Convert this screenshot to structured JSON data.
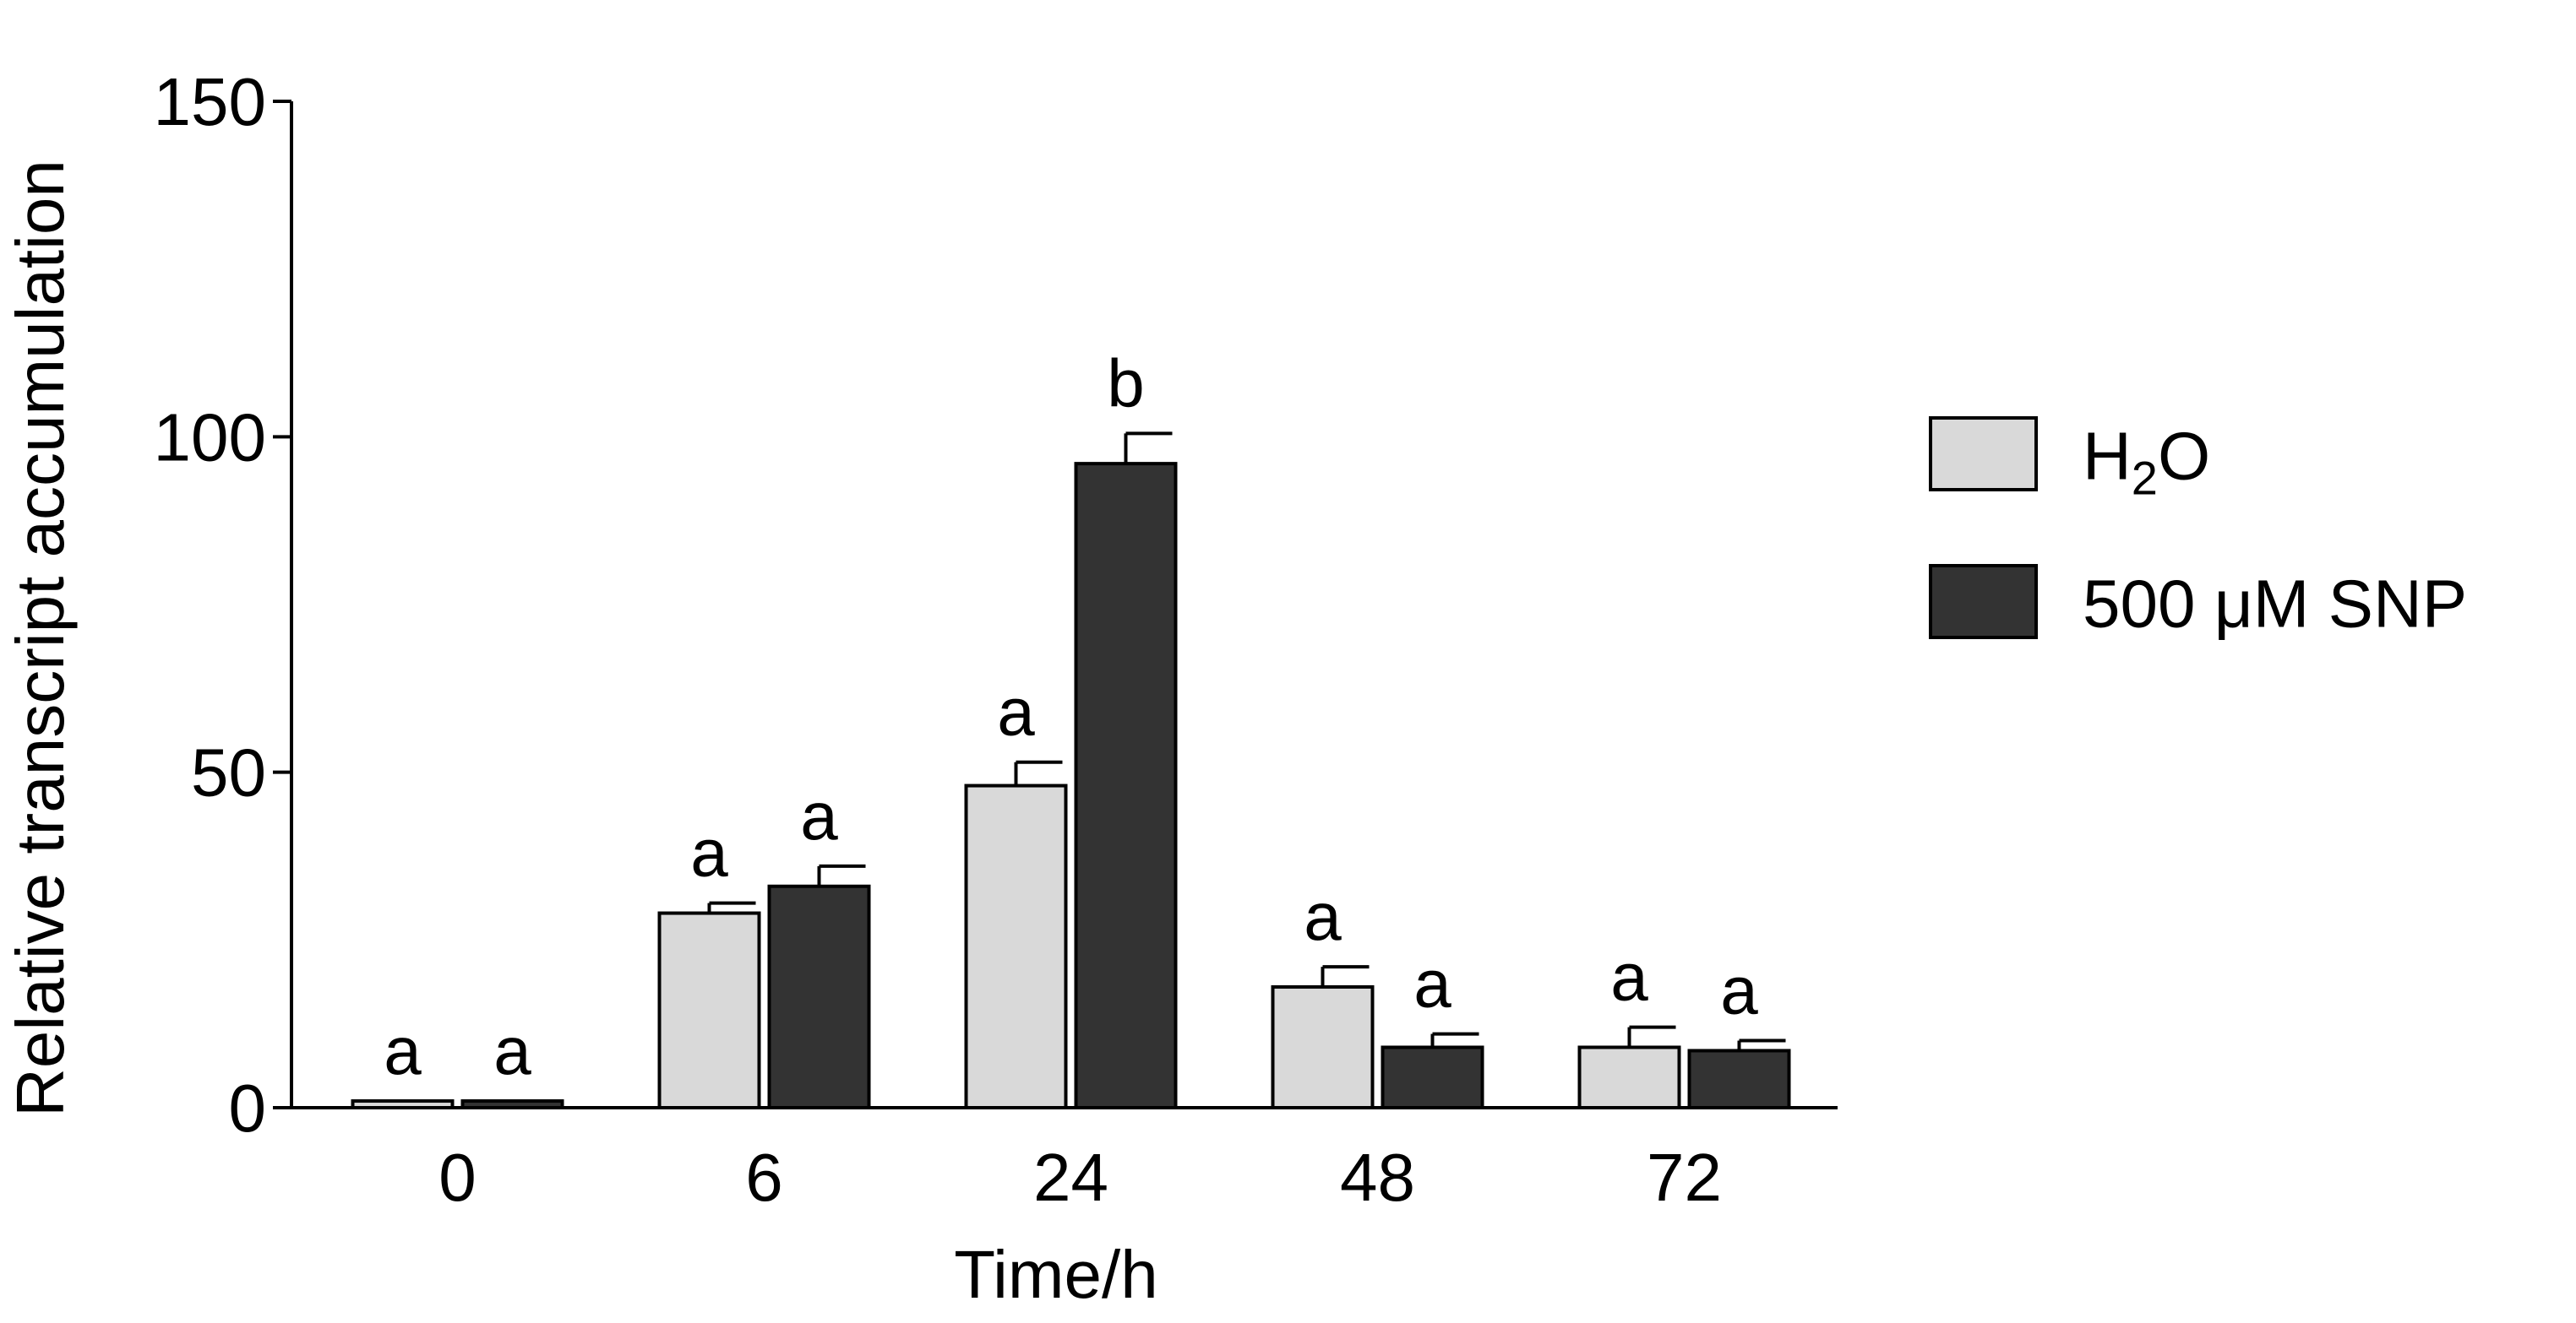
{
  "chart_data": {
    "type": "bar",
    "title": "",
    "xlabel": "Time/h",
    "ylabel": "Relative transcript accumulation",
    "ylim": [
      0,
      150
    ],
    "yticks": [
      0,
      50,
      100,
      150
    ],
    "grid": false,
    "legend_position": "right",
    "categories": [
      "0",
      "6",
      "24",
      "48",
      "72"
    ],
    "series": [
      {
        "name": "H2O",
        "legend_label": {
          "base": "H",
          "sub": "2",
          "tail": "O"
        },
        "color": "#d9d9d9",
        "values": [
          1,
          29,
          48,
          18,
          9
        ],
        "errors": [
          0,
          1.5,
          3.5,
          3,
          3
        ],
        "labels": [
          "a",
          "a",
          "a",
          "a",
          "a"
        ]
      },
      {
        "name": "500 μM SNP",
        "color": "#333333",
        "values": [
          1,
          33,
          96,
          9,
          8.5
        ],
        "errors": [
          0,
          3,
          4.5,
          2,
          1.5
        ],
        "labels": [
          "a",
          "a",
          "b",
          "a",
          "a"
        ]
      }
    ]
  }
}
